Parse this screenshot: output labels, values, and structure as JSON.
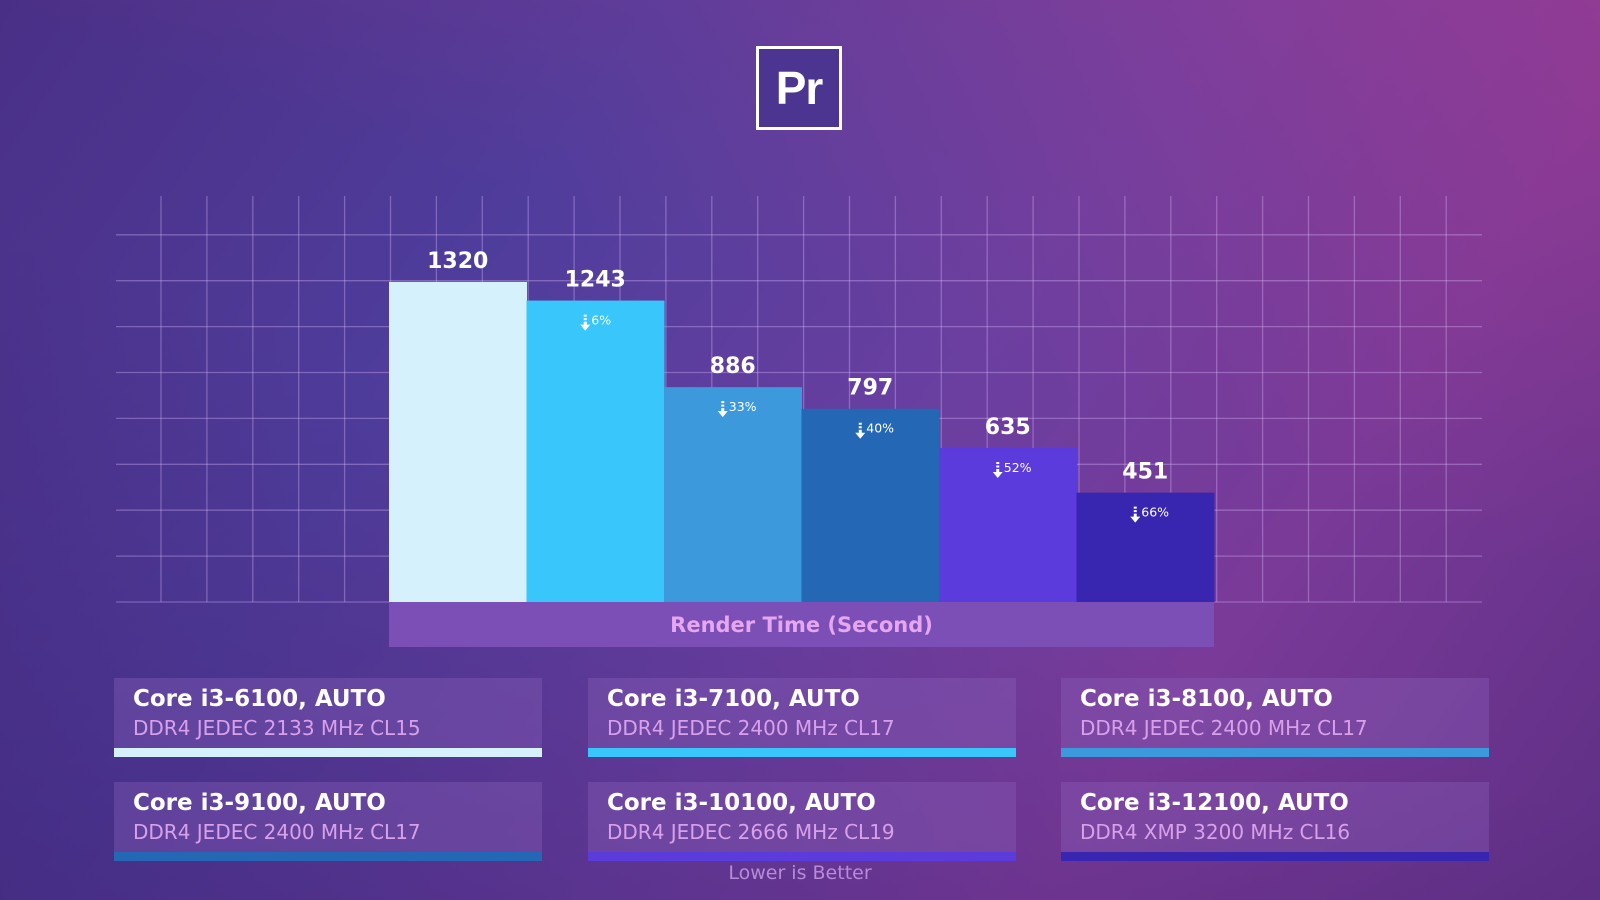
{
  "logo_text": "Pr",
  "chart_data": {
    "type": "bar",
    "title": "",
    "xlabel": "Render Time (Second)",
    "ylabel": "",
    "ylim": [
      0,
      1500
    ],
    "grid": true,
    "categories": [
      "Core i3-6100, AUTO",
      "Core i3-7100, AUTO",
      "Core i3-8100, AUTO",
      "Core i3-9100, AUTO",
      "Core i3-10100, AUTO",
      "Core i3-12100, AUTO"
    ],
    "values": [
      1320,
      1243,
      886,
      797,
      635,
      451
    ],
    "value_labels": [
      "1320",
      "1243",
      "886",
      "797",
      "635",
      "451"
    ],
    "reduction_labels": [
      "",
      "6%",
      "33%",
      "40%",
      "52%",
      "66%"
    ],
    "colors": [
      "#d4f1fc",
      "#38c6fb",
      "#3b99dc",
      "#2467b4",
      "#5b3bdc",
      "#3826b0"
    ]
  },
  "legend": [
    {
      "title": "Core i3-6100, AUTO",
      "subtitle": "DDR4 JEDEC 2133 MHz CL15",
      "color": "#d4f1fc"
    },
    {
      "title": "Core i3-7100, AUTO",
      "subtitle": "DDR4 JEDEC 2400 MHz CL17",
      "color": "#38c6fb"
    },
    {
      "title": "Core i3-8100, AUTO",
      "subtitle": "DDR4 JEDEC 2400 MHz CL17",
      "color": "#3b99dc"
    },
    {
      "title": "Core i3-9100, AUTO",
      "subtitle": "DDR4 JEDEC 2400 MHz CL17",
      "color": "#2467b4"
    },
    {
      "title": "Core i3-10100, AUTO",
      "subtitle": "DDR4 JEDEC 2666 MHz CL19",
      "color": "#5b3bdc"
    },
    {
      "title": "Core i3-12100, AUTO",
      "subtitle": "DDR4 XMP 3200 MHz CL16",
      "color": "#3826b0"
    }
  ],
  "footnote": "Lower is Better"
}
